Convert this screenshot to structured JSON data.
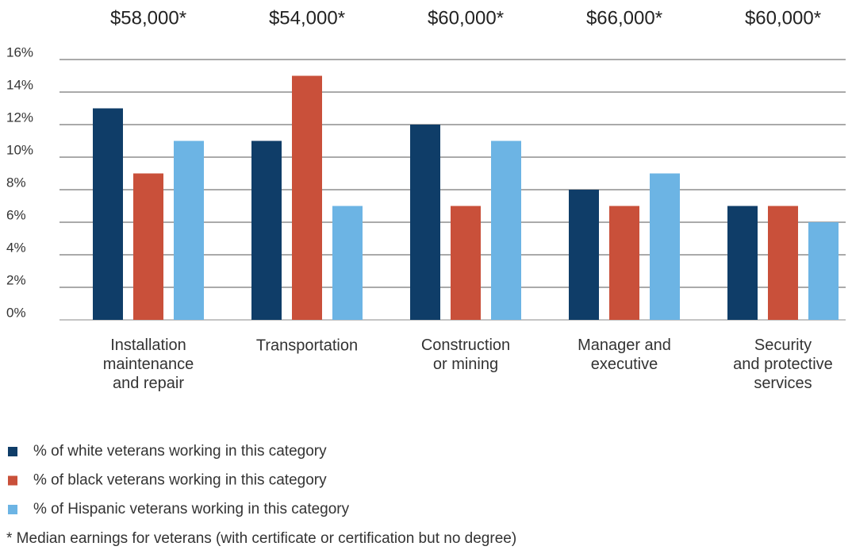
{
  "chart_data": {
    "type": "bar",
    "categories": [
      "Installation\nmaintenance\nand repair",
      "Transportation",
      "Construction\nor mining",
      "Manager and\nexecutive",
      "Security\nand protective\nservices"
    ],
    "annotations": [
      "$58,000*",
      "$54,000*",
      "$60,000*",
      "$66,000*",
      "$60,000*"
    ],
    "series": [
      {
        "name": "% of white veterans working in this category",
        "color": "#0f3d68",
        "values": [
          13,
          11,
          12,
          8,
          7
        ]
      },
      {
        "name": "% of black veterans working in this category",
        "color": "#c9503a",
        "values": [
          9,
          15,
          7,
          7,
          7
        ]
      },
      {
        "name": "% of Hispanic veterans working in this category",
        "color": "#6cb4e4",
        "values": [
          11,
          7,
          11,
          9,
          6
        ]
      }
    ],
    "ylim": [
      0,
      16
    ],
    "yticks": [
      {
        "value": 0,
        "label": "0%"
      },
      {
        "value": 2,
        "label": "2%"
      },
      {
        "value": 4,
        "label": "4%"
      },
      {
        "value": 6,
        "label": "6%"
      },
      {
        "value": 8,
        "label": "8%"
      },
      {
        "value": 10,
        "label": "10%"
      },
      {
        "value": 12,
        "label": "12%"
      },
      {
        "value": 14,
        "label": "14%"
      },
      {
        "value": 16,
        "label": "16%"
      }
    ],
    "grid": true,
    "footnote": "*  Median earnings for veterans (with certificate or certification but no degree)"
  }
}
